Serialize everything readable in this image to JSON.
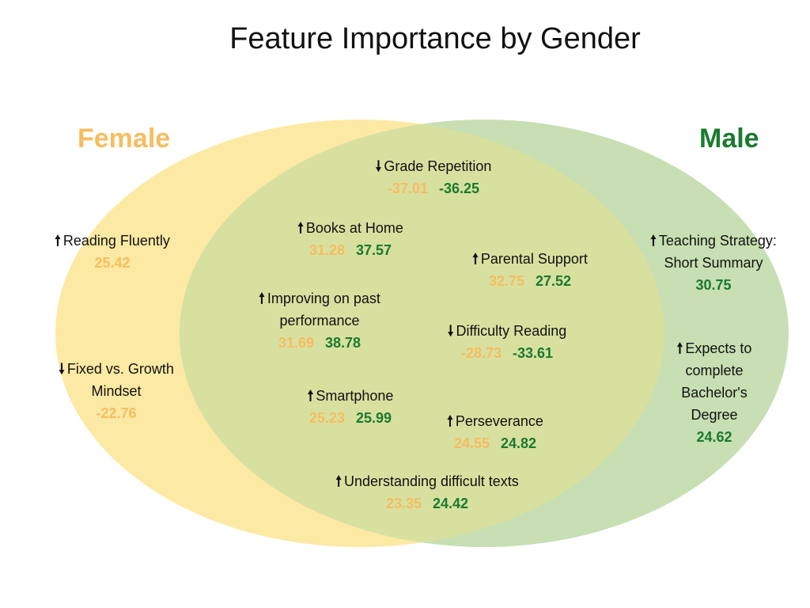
{
  "title": "Feature Importance by Gender",
  "colors": {
    "female": "#f6bd60",
    "male": "#1a7a2e",
    "female_fill": "#fce9a4",
    "male_fill": "#c7dfb3",
    "overlap_fill": "#d8e0a0"
  },
  "sets": {
    "female": "Female",
    "male": "Male"
  },
  "arrows": {
    "up": "🠕",
    "down": "🠗"
  },
  "items": {
    "reading_fluently": {
      "dir": "up",
      "line1": "Reading  Fluently",
      "female": "25.42"
    },
    "fixed_growth": {
      "dir": "down",
      "line1": "Fixed vs. Growth",
      "line2": "Mindset",
      "female": "-22.76"
    },
    "grade_repetition": {
      "dir": "down",
      "line1": "Grade Repetition",
      "female": "-37.01",
      "male": "-36.25"
    },
    "books_home": {
      "dir": "up",
      "line1": "Books at Home",
      "female": "31.28",
      "male": "37.57"
    },
    "parental_support": {
      "dir": "up",
      "line1": "Parental Support",
      "female": "32.75",
      "male": "27.52"
    },
    "improving": {
      "dir": "up",
      "line1": "Improving on past",
      "line2": "performance",
      "female": "31.69",
      "male": "38.78"
    },
    "difficulty_reading": {
      "dir": "down",
      "line1": "Difficulty Reading",
      "female": "-28.73",
      "male": "-33.61"
    },
    "smartphone": {
      "dir": "up",
      "line1": "Smartphone",
      "female": "25.23",
      "male": "25.99"
    },
    "perseverance": {
      "dir": "up",
      "line1": "Perseverance",
      "female": "24.55",
      "male": "24.82"
    },
    "understanding": {
      "dir": "up",
      "line1": "Understanding difficult texts",
      "female": "23.35",
      "male": "24.42"
    },
    "teaching_strategy": {
      "dir": "up",
      "line1": "Teaching Strategy:",
      "line2": "Short Summary",
      "male": "30.75"
    },
    "bachelors": {
      "dir": "up",
      "line1": "Expects to",
      "line2": "complete",
      "line3": "Bachelor's",
      "line4": "Degree",
      "male": "24.62"
    }
  }
}
